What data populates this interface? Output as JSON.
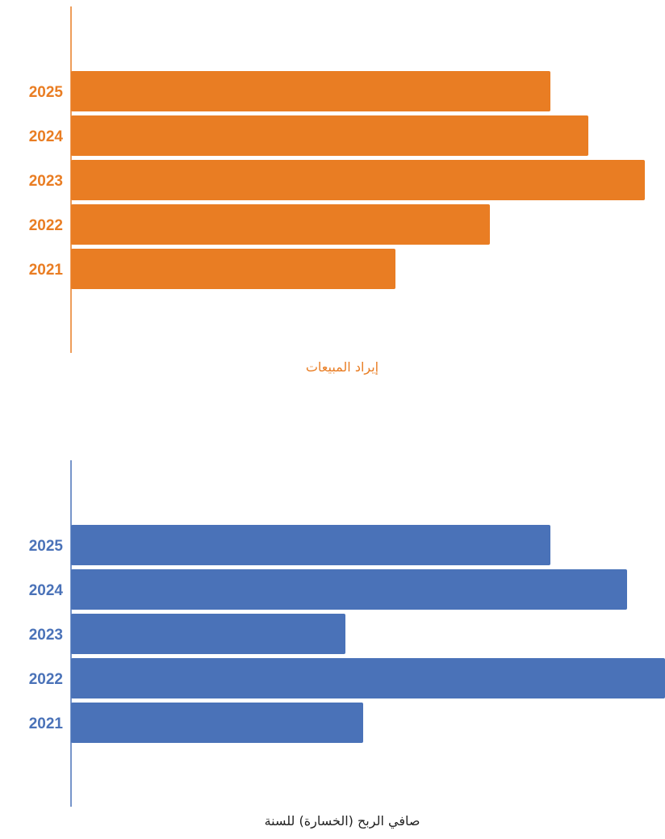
{
  "chart_data": [
    {
      "type": "bar",
      "orientation": "horizontal",
      "color": "#E97D23",
      "categories": [
        "2025",
        "2024",
        "2023",
        "2022",
        "2021"
      ],
      "values": [
        682,
        729,
        799,
        607,
        490
      ],
      "xlim": [
        88,
        800
      ],
      "xlabel": "إيراد المبيعات",
      "title": "",
      "ylabel": "",
      "grid": false,
      "legend": "none"
    },
    {
      "type": "bar",
      "orientation": "horizontal",
      "color": "#4A72B8",
      "categories": [
        "2025",
        "2024",
        "2023",
        "2022",
        "2021"
      ],
      "values": [
        682,
        777,
        428,
        824,
        450
      ],
      "xlim": [
        88,
        824
      ],
      "xlabel": "صافي الربح (الخسارة) للسنة",
      "title": "",
      "ylabel": "",
      "grid": false,
      "legend": "none"
    }
  ]
}
